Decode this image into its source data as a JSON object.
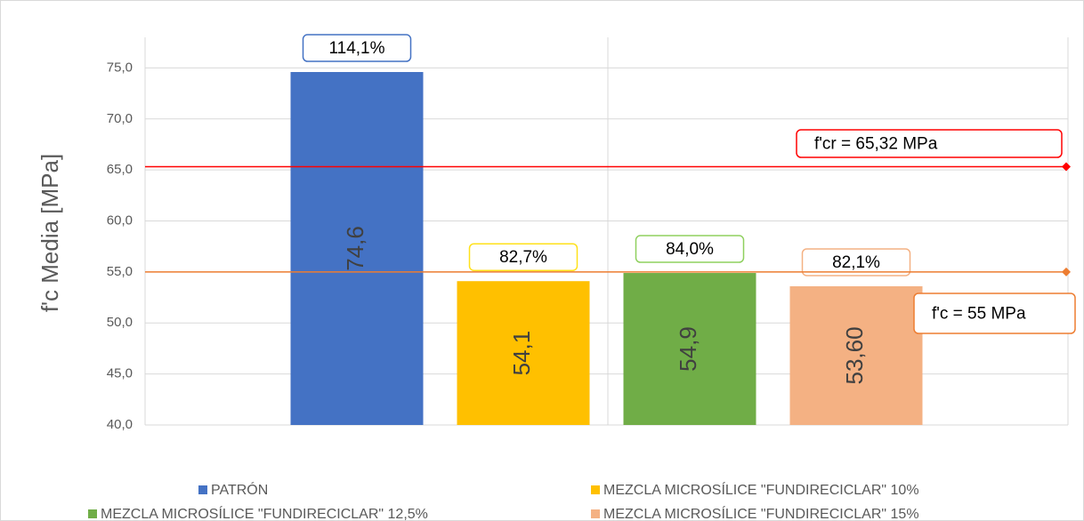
{
  "chart_data": {
    "type": "bar",
    "ylabel": "f'c Media [MPa]",
    "ylim": [
      40,
      78
    ],
    "yticks": [
      {
        "value": 40,
        "label": "40,0"
      },
      {
        "value": 45,
        "label": "45,0"
      },
      {
        "value": 50,
        "label": "50,0"
      },
      {
        "value": 55,
        "label": "55,0"
      },
      {
        "value": 60,
        "label": "60,0"
      },
      {
        "value": 65,
        "label": "65,0"
      },
      {
        "value": 70,
        "label": "70,0"
      },
      {
        "value": 75,
        "label": "75,0"
      }
    ],
    "grid": true,
    "series": [
      {
        "name": "PATRÓN",
        "color": "#4472c4",
        "values": [
          74.6
        ],
        "value_labels": [
          "74,6"
        ],
        "annotations": [
          "114,1%"
        ],
        "annotation_color": "#4472c4"
      },
      {
        "name": "MEZCLA MICROSÍLICE \"FUNDIRECICLAR\" 10%",
        "color": "#ffc000",
        "values": [
          54.1
        ],
        "value_labels": [
          "54,1"
        ],
        "annotations": [
          "82,7%"
        ],
        "annotation_color": "#ffe11a"
      },
      {
        "name": "MEZCLA MICROSÍLICE \"FUNDIRECICLAR\" 12,5%",
        "color": "#70ad47",
        "values": [
          54.9
        ],
        "value_labels": [
          "54,9"
        ],
        "annotations": [
          "84,0%"
        ],
        "annotation_color": "#8fd05f"
      },
      {
        "name": "MEZCLA MICROSÍLICE \"FUNDIRECICLAR\" 15%",
        "color": "#f4b183",
        "values": [
          53.6
        ],
        "value_labels": [
          "53,60"
        ],
        "annotations": [
          "82,1%"
        ],
        "annotation_color": "#f4b183"
      }
    ],
    "reference_lines": [
      {
        "label": "f'cr = 65,32 MPa",
        "value": 65.32,
        "color": "#ff0000"
      },
      {
        "label": "f'c = 55 MPa",
        "value": 55,
        "color": "#ed7d31"
      }
    ]
  }
}
